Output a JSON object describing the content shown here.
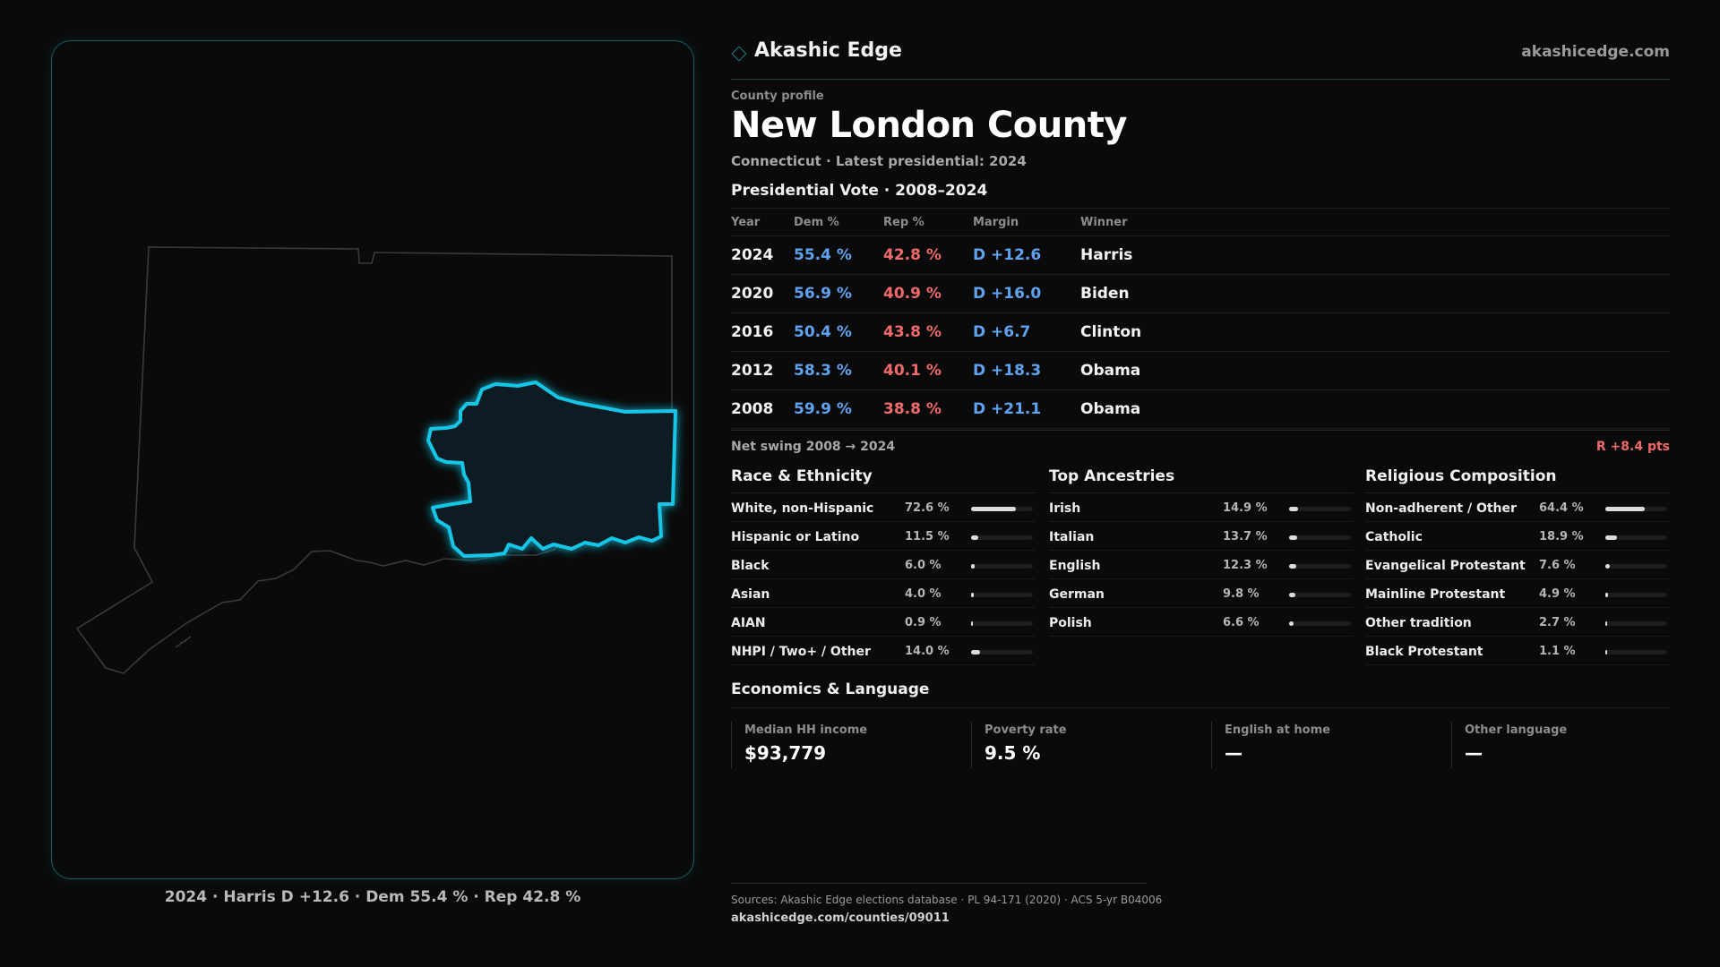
{
  "brand": {
    "name": "Akashic Edge",
    "url": "akashicedge.com"
  },
  "header": {
    "kicker": "County profile",
    "title": "New London County",
    "subtitle": "Connecticut · Latest presidential: 2024"
  },
  "map": {
    "caption": "2024 · Harris D +12.6 · Dem 55.4 % · Rep 42.8 %",
    "highlight_color": "#18c6e6"
  },
  "vote": {
    "heading": "Presidential Vote · 2008–2024",
    "columns": [
      "Year",
      "Dem %",
      "Rep %",
      "Margin",
      "Winner"
    ],
    "rows": [
      {
        "year": "2024",
        "dem": "55.4 %",
        "rep": "42.8 %",
        "margin": "D +12.6",
        "winner": "Harris"
      },
      {
        "year": "2020",
        "dem": "56.9 %",
        "rep": "40.9 %",
        "margin": "D +16.0",
        "winner": "Biden"
      },
      {
        "year": "2016",
        "dem": "50.4 %",
        "rep": "43.8 %",
        "margin": "D +6.7",
        "winner": "Clinton"
      },
      {
        "year": "2012",
        "dem": "58.3 %",
        "rep": "40.1 %",
        "margin": "D +18.3",
        "winner": "Obama"
      },
      {
        "year": "2008",
        "dem": "59.9 %",
        "rep": "38.8 %",
        "margin": "D +21.1",
        "winner": "Obama"
      }
    ],
    "swing_label": "Net swing 2008 → 2024",
    "swing_value": "R +8.4 pts"
  },
  "race": {
    "heading": "Race & Ethnicity",
    "items": [
      {
        "label": "White, non-Hispanic",
        "pct": "72.6 %",
        "share": 0.726
      },
      {
        "label": "Hispanic or Latino",
        "pct": "11.5 %",
        "share": 0.115
      },
      {
        "label": "Black",
        "pct": "6.0 %",
        "share": 0.06
      },
      {
        "label": "Asian",
        "pct": "4.0 %",
        "share": 0.04
      },
      {
        "label": "AIAN",
        "pct": "0.9 %",
        "share": 0.009
      },
      {
        "label": "NHPI / Two+ / Other",
        "pct": "14.0 %",
        "share": 0.14
      }
    ]
  },
  "ancestry": {
    "heading": "Top Ancestries",
    "items": [
      {
        "label": "Irish",
        "pct": "14.9 %",
        "share": 0.149
      },
      {
        "label": "Italian",
        "pct": "13.7 %",
        "share": 0.137
      },
      {
        "label": "English",
        "pct": "12.3 %",
        "share": 0.123
      },
      {
        "label": "German",
        "pct": "9.8 %",
        "share": 0.098
      },
      {
        "label": "Polish",
        "pct": "6.6 %",
        "share": 0.066
      }
    ]
  },
  "religion": {
    "heading": "Religious Composition",
    "items": [
      {
        "label": "Non-adherent / Other",
        "pct": "64.4 %",
        "share": 0.644
      },
      {
        "label": "Catholic",
        "pct": "18.9 %",
        "share": 0.189
      },
      {
        "label": "Evangelical Protestant",
        "pct": "7.6 %",
        "share": 0.076
      },
      {
        "label": "Mainline Protestant",
        "pct": "4.9 %",
        "share": 0.049
      },
      {
        "label": "Other tradition",
        "pct": "2.7 %",
        "share": 0.027
      },
      {
        "label": "Black Protestant",
        "pct": "1.1 %",
        "share": 0.011
      }
    ]
  },
  "economics": {
    "heading": "Economics & Language",
    "cells": [
      {
        "label": "Median HH income",
        "value": "$93,779"
      },
      {
        "label": "Poverty rate",
        "value": "9.5 %"
      },
      {
        "label": "English at home",
        "value": "—"
      },
      {
        "label": "Other language",
        "value": "—"
      }
    ]
  },
  "sources": {
    "line1": "Sources: Akashic Edge elections database · PL 94-171 (2020) · ACS 5-yr B04006",
    "line2": "akashicedge.com/counties/09011"
  }
}
